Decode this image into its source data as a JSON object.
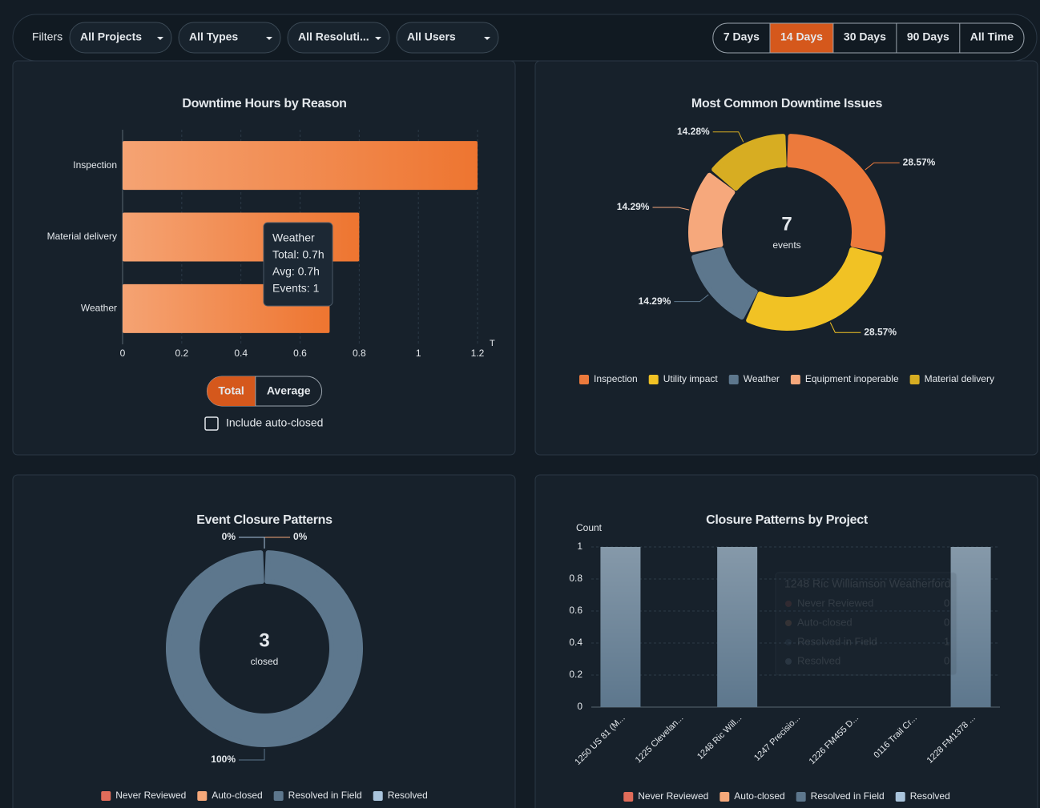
{
  "filters": {
    "label": "Filters",
    "dropdowns": [
      "All Projects",
      "All Types",
      "All Resoluti...",
      "All Users"
    ],
    "ranges": [
      "7 Days",
      "14 Days",
      "30 Days",
      "90 Days",
      "All Time"
    ],
    "active_range": 1
  },
  "chart_data": [
    {
      "type": "bar",
      "horizontal": true,
      "title": "Downtime Hours by Reason",
      "categories": [
        "Inspection",
        "Material delivery",
        "Weather"
      ],
      "values": [
        1.2,
        0.8,
        0.7
      ],
      "gradient": [
        "#f5a373",
        "#ee7530"
      ],
      "xlim": [
        0,
        1.2
      ],
      "xticks": [
        0,
        0.2,
        0.4,
        0.6,
        0.8,
        1,
        1.2
      ],
      "xlabel": "T",
      "grid": true,
      "tooltip": [
        "Weather",
        "Total: 0.7h",
        "Avg: 0.7h",
        "Events: 1"
      ],
      "toggle": {
        "options": [
          "Total",
          "Average"
        ],
        "active": 0
      },
      "checkbox": {
        "label": "Include auto-closed",
        "checked": false
      }
    },
    {
      "type": "donut",
      "title": "Most Common Downtime Issues",
      "center_value": 7,
      "center_label": "events",
      "categories": [
        "Inspection",
        "Utility impact",
        "Weather",
        "Equipment inoperable",
        "Material delivery"
      ],
      "values": [
        28.57,
        28.57,
        14.29,
        14.29,
        14.28
      ],
      "value_labels": [
        "28.57%",
        "28.57%",
        "14.29%",
        "14.29%",
        "14.28%"
      ],
      "colors": [
        "#ec7a3c",
        "#f1c224",
        "#5d778d",
        "#f6a87c",
        "#d7ad22"
      ]
    },
    {
      "type": "donut",
      "title": "Event Closure Patterns",
      "center_value": 3,
      "center_label": "closed",
      "categories": [
        "Never Reviewed",
        "Auto-closed",
        "Resolved in Field",
        "Resolved"
      ],
      "values": [
        0,
        0,
        100,
        0
      ],
      "value_labels": [
        null,
        "0%",
        "100%",
        "0%"
      ],
      "colors": [
        "#e06c5a",
        "#f5a87a",
        "#5d778d",
        "#a9c4dc"
      ]
    },
    {
      "type": "stacked-bar",
      "title": "Closure Patterns by Project",
      "ylabel": "Count",
      "categories": [
        "1250 US 81 (M...",
        "1225 Clevelan...",
        "1248 Ric Will...",
        "1247 Precisio...",
        "1226 FM455 D...",
        "0116 Trail Cr...",
        "1228 FM1378 ..."
      ],
      "series": [
        {
          "name": "Never Reviewed",
          "color": "#e06c5a",
          "values": [
            0,
            0,
            0,
            0,
            0,
            0,
            0
          ]
        },
        {
          "name": "Auto-closed",
          "color": "#f5a87a",
          "values": [
            0,
            0,
            0,
            0,
            0,
            0,
            0
          ]
        },
        {
          "name": "Resolved in Field",
          "color": "#5d778d",
          "values": [
            1,
            0,
            1,
            0,
            0,
            0,
            1
          ]
        },
        {
          "name": "Resolved",
          "color": "#a9c4dc",
          "values": [
            0,
            0,
            0,
            0,
            0,
            0,
            0
          ]
        }
      ],
      "ylim": [
        0,
        1
      ],
      "yticks": [
        0,
        0.2,
        0.4,
        0.6,
        0.8,
        1
      ],
      "grid": true,
      "tooltip_title": "1248 Ric Williamson Weatherford",
      "tooltip_index": 2
    }
  ]
}
